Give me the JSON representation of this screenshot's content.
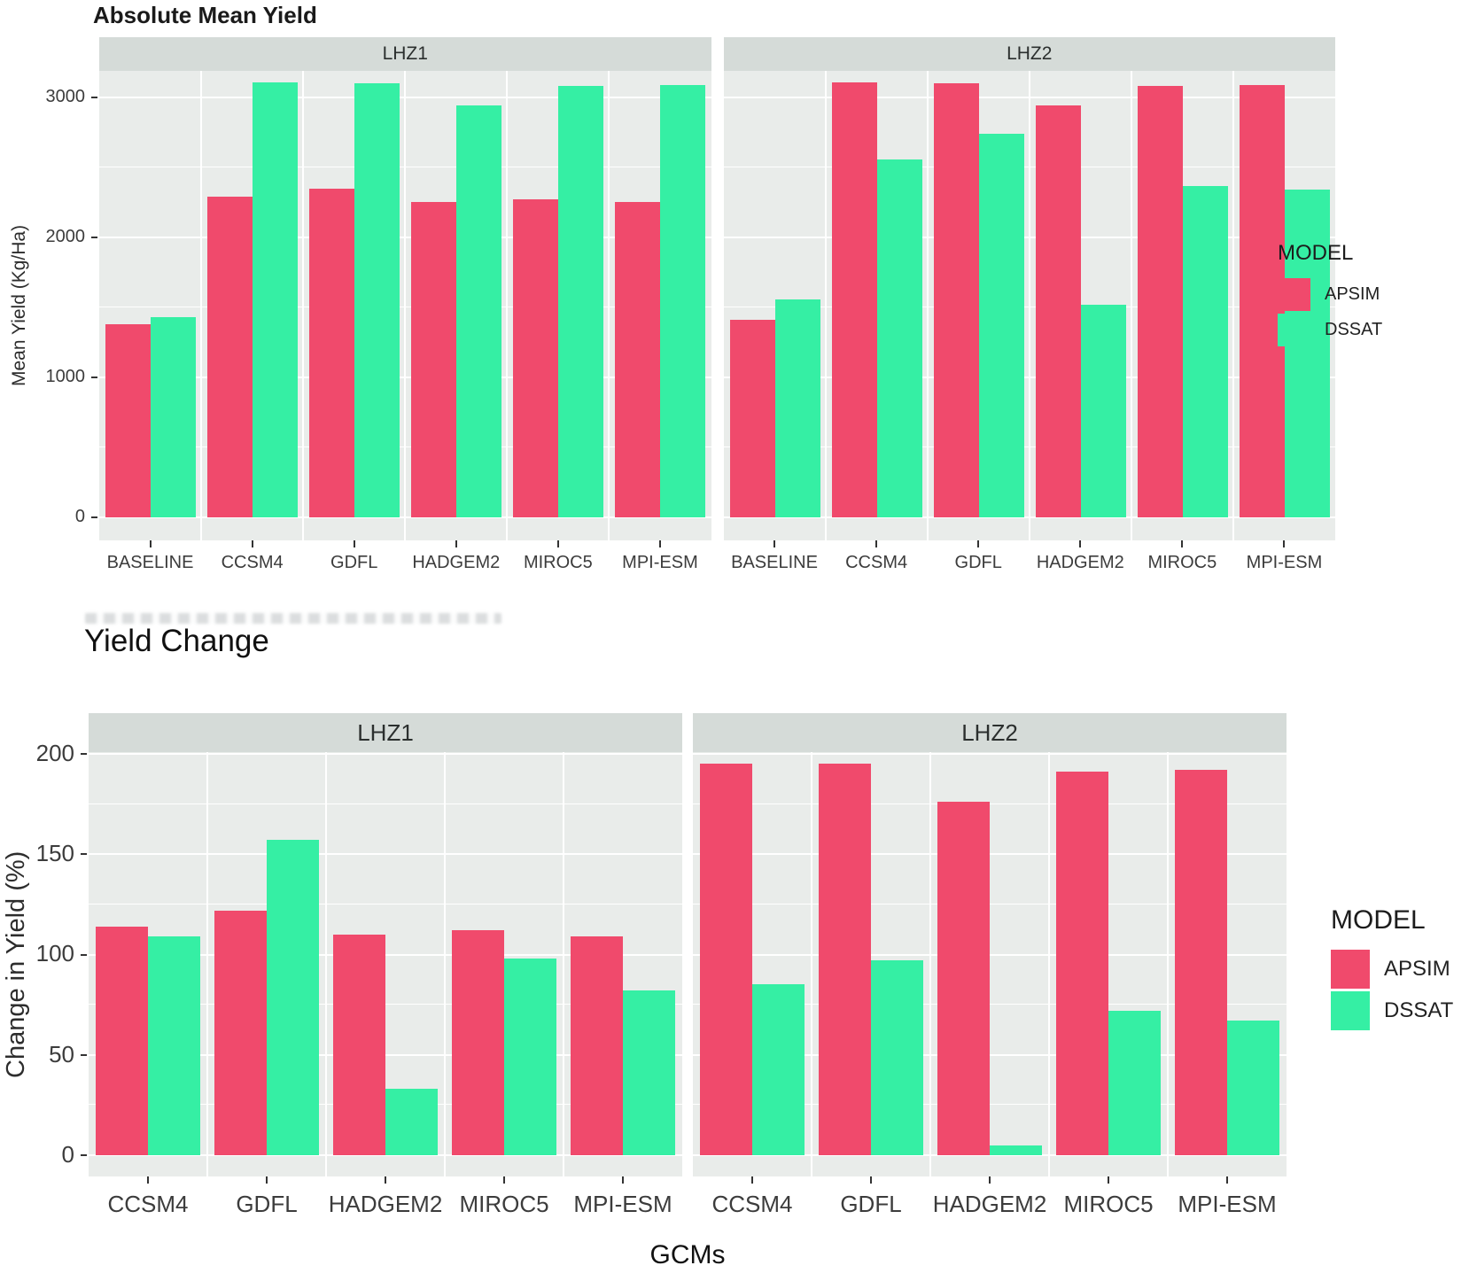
{
  "colors": {
    "apsim": "#F04A6C",
    "dssat": "#35EFA4",
    "panel_bg": "#E9ECEA",
    "strip_bg": "#D5DBD8",
    "gridline": "#FFFFFF",
    "axis_text": "#3C3C3C",
    "title_text": "#1A1A1A"
  },
  "legend": {
    "title": "MODEL",
    "items": [
      {
        "label": "APSIM",
        "color": "#F04A6C"
      },
      {
        "label": "DSSAT",
        "color": "#35EFA4"
      }
    ]
  },
  "chart_data": [
    {
      "type": "bar",
      "title": "Absolute Mean Yield",
      "ylabel": "Mean Yield (Kg/Ha)",
      "xlabel": "",
      "yticks": [
        0,
        1000,
        2000,
        3000
      ],
      "minor_ticks": [
        500,
        1500,
        2500
      ],
      "ylim": [
        0,
        3190
      ],
      "grid": true,
      "legend_position": "right",
      "facets": [
        {
          "label": "LHZ1",
          "categories": [
            "BASELINE",
            "CCSM4",
            "GDFL",
            "HADGEM2",
            "MIROC5",
            "MPI-ESM"
          ],
          "series": [
            {
              "name": "APSIM",
              "values": [
                1380,
                2290,
                2350,
                2250,
                2270,
                2250
              ]
            },
            {
              "name": "DSSAT",
              "values": [
                1430,
                3110,
                3100,
                2940,
                3080,
                3090
              ]
            }
          ]
        },
        {
          "label": "LHZ2",
          "categories": [
            "BASELINE",
            "CCSM4",
            "GDFL",
            "HADGEM2",
            "MIROC5",
            "MPI-ESM"
          ],
          "series": [
            {
              "name": "APSIM",
              "values": [
                1410,
                3110,
                3100,
                2940,
                3080,
                3090
              ]
            },
            {
              "name": "DSSAT",
              "values": [
                1560,
                2560,
                2740,
                1520,
                2370,
                2340
              ]
            }
          ]
        }
      ]
    },
    {
      "type": "bar",
      "title": "Yield Change",
      "ylabel": "Change in Yield (%)",
      "xlabel": "GCMs",
      "yticks": [
        0,
        50,
        100,
        150,
        200
      ],
      "minor_ticks": [
        25,
        75,
        125,
        175
      ],
      "ylim": [
        0,
        204
      ],
      "grid": true,
      "legend_position": "right",
      "facets": [
        {
          "label": "LHZ1",
          "categories": [
            "CCSM4",
            "GDFL",
            "HADGEM2",
            "MIROC5",
            "MPI-ESM"
          ],
          "series": [
            {
              "name": "APSIM",
              "values": [
                114,
                122,
                110,
                112,
                109
              ]
            },
            {
              "name": "DSSAT",
              "values": [
                109,
                157,
                33,
                98,
                82
              ]
            }
          ]
        },
        {
          "label": "LHZ2",
          "categories": [
            "CCSM4",
            "GDFL",
            "HADGEM2",
            "MIROC5",
            "MPI-ESM"
          ],
          "series": [
            {
              "name": "APSIM",
              "values": [
                195,
                195,
                176,
                191,
                192
              ]
            },
            {
              "name": "DSSAT",
              "values": [
                85,
                97,
                5,
                72,
                67
              ]
            }
          ]
        }
      ]
    }
  ]
}
